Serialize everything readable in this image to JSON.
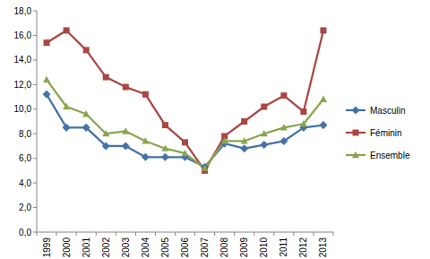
{
  "chart_data": {
    "type": "line",
    "categories": [
      "1999",
      "2000",
      "2001",
      "2002",
      "2003",
      "2004",
      "2005",
      "2006",
      "2007",
      "2008",
      "2009",
      "2010",
      "2011",
      "2012",
      "2013"
    ],
    "series": [
      {
        "name": "Masculin",
        "color": "#4572a7",
        "marker": "diamond",
        "values": [
          11.2,
          8.5,
          8.5,
          7.0,
          7.0,
          6.1,
          6.1,
          6.1,
          5.3,
          7.2,
          6.8,
          7.1,
          7.4,
          8.5,
          8.7
        ]
      },
      {
        "name": "Féminin",
        "color": "#aa4643",
        "marker": "square",
        "values": [
          15.4,
          16.4,
          14.8,
          12.6,
          11.8,
          11.2,
          8.7,
          7.3,
          5.0,
          7.8,
          9.0,
          10.2,
          11.1,
          9.8,
          16.4
        ]
      },
      {
        "name": "Ensemble",
        "color": "#89a54e",
        "marker": "triangle",
        "values": [
          12.4,
          10.2,
          9.6,
          8.0,
          8.2,
          7.4,
          6.8,
          6.4,
          5.2,
          7.4,
          7.4,
          8.0,
          8.5,
          8.8,
          10.8
        ]
      }
    ],
    "ylim": [
      0,
      18
    ],
    "yticks": [
      {
        "value": 0,
        "label": "0,0"
      },
      {
        "value": 2,
        "label": "2,0"
      },
      {
        "value": 4,
        "label": "4,0"
      },
      {
        "value": 6,
        "label": "6,0"
      },
      {
        "value": 8,
        "label": "8,0"
      },
      {
        "value": 10,
        "label": "10,0"
      },
      {
        "value": 12,
        "label": "12,0"
      },
      {
        "value": 14,
        "label": "14,0"
      },
      {
        "value": 16,
        "label": "16,0"
      },
      {
        "value": 18,
        "label": "18,0"
      }
    ],
    "grid": false,
    "legend": "right"
  }
}
